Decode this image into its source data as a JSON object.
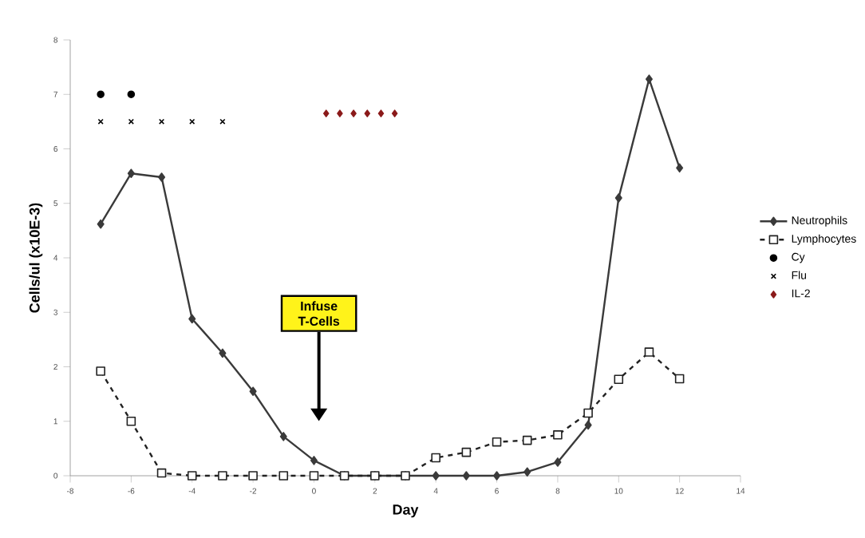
{
  "chart_data": {
    "type": "line",
    "xlabel": "Day",
    "ylabel": "Cells/ul  (x10E-3)",
    "xlim": [
      -8,
      14
    ],
    "xticks": [
      -8,
      -6,
      -4,
      -2,
      0,
      2,
      4,
      6,
      8,
      10,
      12,
      14
    ],
    "ylim": [
      0,
      8
    ],
    "yticks": [
      0,
      1,
      2,
      3,
      4,
      5,
      6,
      7,
      8
    ],
    "legend": "right",
    "annotations": [
      "Infuse T-Cells"
    ],
    "series": [
      {
        "name": "Neutrophils",
        "type": "line",
        "marker": "diamond",
        "line_style": "solid",
        "color": "#3a3a3a",
        "x": [
          -7,
          -6,
          -5,
          -4,
          -3,
          -2,
          -1,
          0,
          1,
          2,
          3,
          4,
          5,
          6,
          7,
          8,
          9,
          10,
          11,
          12
        ],
        "values": [
          4.62,
          5.55,
          5.48,
          2.88,
          2.25,
          1.55,
          0.72,
          0.28,
          0,
          0,
          0,
          0,
          0,
          0,
          0.07,
          0.25,
          0.93,
          5.1,
          7.28,
          5.65
        ]
      },
      {
        "name": "Lymphocytes",
        "type": "line",
        "marker": "square",
        "line_style": "dashed",
        "color": "#222222",
        "x": [
          -7,
          -6,
          -5,
          -4,
          -3,
          -2,
          -1,
          0,
          1,
          2,
          3,
          4,
          5,
          6,
          7,
          8,
          9,
          10,
          11,
          12
        ],
        "values": [
          1.92,
          1.0,
          0.05,
          0,
          0,
          0,
          0,
          0,
          0,
          0,
          0,
          0.33,
          0.43,
          0.62,
          0.65,
          0.75,
          1.15,
          1.77,
          2.27,
          1.78
        ]
      },
      {
        "name": "Cy",
        "type": "scatter",
        "marker": "circle",
        "color": "#000000",
        "x": [
          -7,
          -6
        ],
        "values": [
          7.0,
          7.0
        ]
      },
      {
        "name": "Flu",
        "type": "scatter",
        "marker": "cross",
        "color": "#000000",
        "x": [
          -7,
          -6,
          -5,
          -4,
          -3
        ],
        "values": [
          6.5,
          6.5,
          6.5,
          6.5,
          6.5
        ]
      },
      {
        "name": "IL-2",
        "type": "scatter",
        "marker": "diamond",
        "color": "#8b1a1a",
        "x": [
          0.4,
          0.85,
          1.3,
          1.75,
          2.2,
          2.65
        ],
        "values": [
          6.65,
          6.65,
          6.65,
          6.65,
          6.65,
          6.65
        ]
      }
    ]
  }
}
